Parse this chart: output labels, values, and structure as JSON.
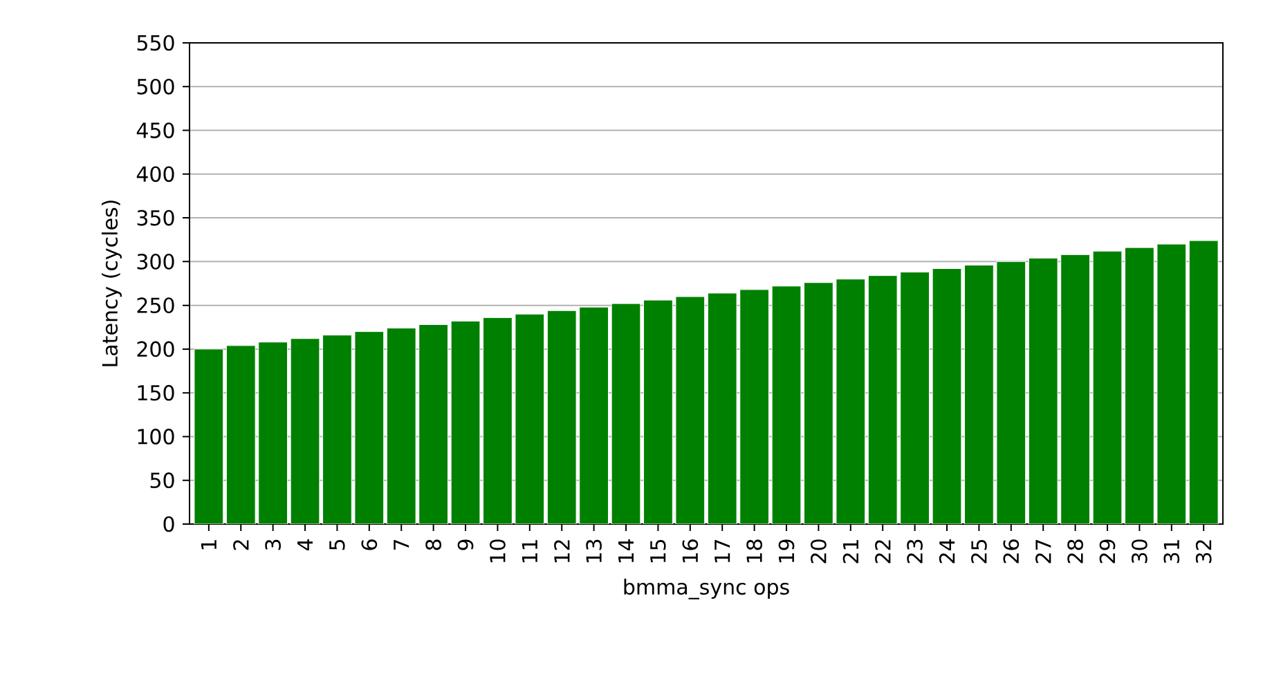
{
  "chart_data": {
    "type": "bar",
    "xlabel": "bmma_sync ops",
    "ylabel": "Latency (cycles)",
    "categories": [
      "1",
      "2",
      "3",
      "4",
      "5",
      "6",
      "7",
      "8",
      "9",
      "10",
      "11",
      "12",
      "13",
      "14",
      "15",
      "16",
      "17",
      "18",
      "19",
      "20",
      "21",
      "22",
      "23",
      "24",
      "25",
      "26",
      "27",
      "28",
      "29",
      "30",
      "31",
      "32"
    ],
    "values": [
      200,
      204,
      208,
      212,
      216,
      220,
      224,
      228,
      232,
      236,
      240,
      244,
      248,
      252,
      256,
      260,
      264,
      268,
      272,
      276,
      280,
      284,
      288,
      292,
      296,
      300,
      304,
      308,
      312,
      316,
      320,
      324
    ],
    "color": "#008000",
    "ylim": [
      0,
      550
    ],
    "yticks": [
      0,
      50,
      100,
      150,
      200,
      250,
      300,
      350,
      400,
      450,
      500,
      550
    ],
    "grid": "y"
  }
}
